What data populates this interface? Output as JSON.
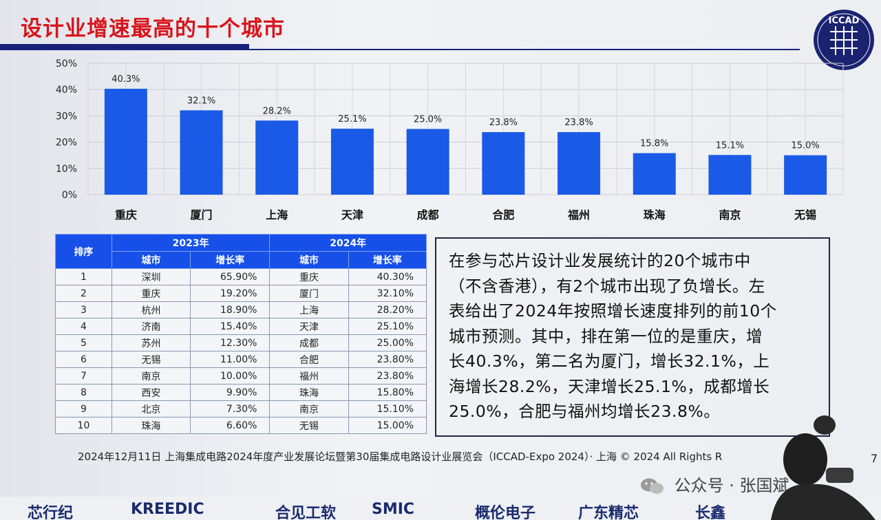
{
  "slide": {
    "title": "设计业增速最高的十个城市",
    "footer": "2024年12月11日 上海集成电路2024年度产业发展论坛暨第30届集成电路设计业展览会（ICCAD-Expo 2024）· 上海 © 2024 All Rights R",
    "page_number": "7",
    "logo_text": "ICCAD",
    "watermark": "公众号 · 张国斌"
  },
  "chart_data": {
    "type": "bar",
    "categories": [
      "重庆",
      "厦门",
      "上海",
      "天津",
      "成都",
      "合肥",
      "福州",
      "珠海",
      "南京",
      "无锡"
    ],
    "values": [
      40.3,
      32.1,
      28.2,
      25.1,
      25.0,
      23.8,
      23.8,
      15.8,
      15.1,
      15.0
    ],
    "value_labels": [
      "40.3%",
      "32.1%",
      "28.2%",
      "25.1%",
      "25.0%",
      "23.8%",
      "23.8%",
      "15.8%",
      "15.1%",
      "15.0%"
    ],
    "y_ticks": [
      "0%",
      "10%",
      "20%",
      "30%",
      "40%",
      "50%"
    ],
    "ylim": [
      0,
      50
    ],
    "grid": true,
    "bar_color": "#1a5ae6"
  },
  "table": {
    "rank_header": "排序",
    "year_headers": [
      "2023年",
      "2024年"
    ],
    "sub_headers": [
      "城市",
      "增长率",
      "城市",
      "增长率"
    ],
    "rows": [
      [
        "1",
        "深圳",
        "65.90%",
        "重庆",
        "40.30%"
      ],
      [
        "2",
        "重庆",
        "19.20%",
        "厦门",
        "32.10%"
      ],
      [
        "3",
        "杭州",
        "18.90%",
        "上海",
        "28.20%"
      ],
      [
        "4",
        "济南",
        "15.40%",
        "天津",
        "25.10%"
      ],
      [
        "5",
        "苏州",
        "12.30%",
        "成都",
        "25.00%"
      ],
      [
        "6",
        "无锡",
        "11.00%",
        "合肥",
        "23.80%"
      ],
      [
        "7",
        "南京",
        "10.00%",
        "福州",
        "23.80%"
      ],
      [
        "8",
        "西安",
        "9.90%",
        "珠海",
        "15.80%"
      ],
      [
        "9",
        "北京",
        "7.30%",
        "南京",
        "15.10%"
      ],
      [
        "10",
        "珠海",
        "6.60%",
        "无锡",
        "15.00%"
      ]
    ]
  },
  "summary": {
    "lines": [
      "在参与芯片设计业发展统计的20个城市中",
      "（不含香港），有2个城市出现了负增长。左",
      "表给出了2024年按照增长速度排列的前10个",
      "城市预测。其中，排在第一位的是重庆，增",
      "长40.3%，第二名为厦门，增长32.1%，上",
      "海增长28.2%，天津增长25.1%，成都增长",
      "25.0%，合肥与福州均增长23.8%。"
    ]
  },
  "sponsors": [
    "芯行纪",
    "KREEDIC",
    "合见工软",
    "SMIC",
    "概伦电子",
    "广东精芯",
    "长鑫"
  ]
}
